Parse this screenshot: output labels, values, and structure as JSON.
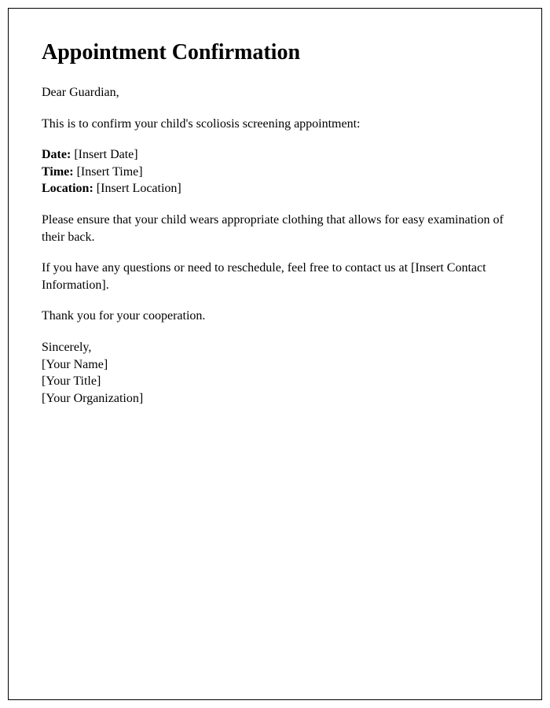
{
  "title": "Appointment Confirmation",
  "salutation": "Dear Guardian,",
  "intro": "This is to confirm your child's scoliosis screening appointment:",
  "details": {
    "date_label": "Date:",
    "date_value": " [Insert Date]",
    "time_label": "Time:",
    "time_value": " [Insert Time]",
    "location_label": "Location:",
    "location_value": " [Insert Location]"
  },
  "instruction": "Please ensure that your child wears appropriate clothing that allows for easy examination of their back.",
  "contact": "If you have any questions or need to reschedule, feel free to contact us at [Insert Contact Information].",
  "thanks": "Thank you for your cooperation.",
  "closing": {
    "signoff": "Sincerely,",
    "name": "[Your Name]",
    "title": "[Your Title]",
    "organization": "[Your Organization]"
  }
}
